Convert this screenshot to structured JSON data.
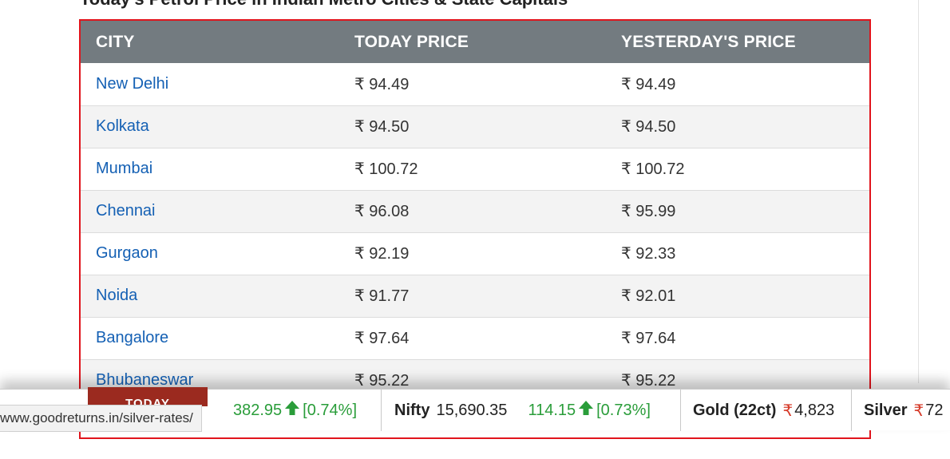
{
  "page": {
    "title": "Today's Petrol Price in Indian Metro Cities & State Capitals"
  },
  "table": {
    "headers": [
      "CITY",
      "TODAY PRICE",
      "YESTERDAY'S PRICE"
    ],
    "rows": [
      {
        "city": "New Delhi",
        "today": "₹ 94.49",
        "yesterday": "₹ 94.49"
      },
      {
        "city": "Kolkata",
        "today": "₹ 94.50",
        "yesterday": "₹ 94.50"
      },
      {
        "city": "Mumbai",
        "today": "₹ 100.72",
        "yesterday": "₹ 100.72"
      },
      {
        "city": "Chennai",
        "today": "₹ 96.08",
        "yesterday": "₹ 95.99"
      },
      {
        "city": "Gurgaon",
        "today": "₹ 92.19",
        "yesterday": "₹ 92.33"
      },
      {
        "city": "Noida",
        "today": "₹ 91.77",
        "yesterday": "₹ 92.01"
      },
      {
        "city": "Bangalore",
        "today": "₹ 97.64",
        "yesterday": "₹ 97.64"
      },
      {
        "city": "Bhubaneswar",
        "today": "₹ 95.22",
        "yesterday": "₹ 95.22"
      }
    ]
  },
  "ticker": {
    "today_label": "TODAY",
    "sensex_change": "382.95",
    "sensex_pct": "[0.74%]",
    "nifty_name": "Nifty",
    "nifty_value": "15,690.35",
    "nifty_change": "114.15",
    "nifty_pct": "[0.73%]",
    "gold_name": "Gold (22ct)",
    "gold_value": "4,823",
    "silver_name": "Silver",
    "silver_value": "72",
    "rupee_symbol": "₹",
    "up_icon": "arrow-up-icon"
  },
  "status_bar": {
    "url": "www.goodreturns.in/silver-rates/"
  },
  "colors": {
    "header_bg": "#737b80",
    "link": "#1460b4",
    "highlight_border": "#e0141c",
    "up": "#2a9d3a",
    "today_badge": "#9b2a1f"
  }
}
